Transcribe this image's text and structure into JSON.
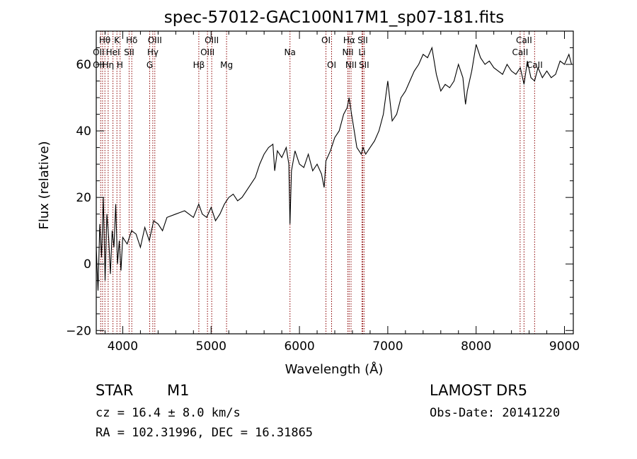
{
  "chart_data": {
    "type": "line",
    "title": "spec-57012-GAC100N17M1_sp07-181.fits",
    "xlabel": "Wavelength (Å)",
    "ylabel": "Flux (relative)",
    "xlim": [
      3700,
      9100
    ],
    "ylim": [
      -21,
      70
    ],
    "x_ticks": [
      4000,
      5000,
      6000,
      7000,
      8000,
      9000
    ],
    "y_ticks": [
      -20,
      0,
      20,
      40,
      60
    ],
    "x_minor_step": 200,
    "y_minor_step": 5,
    "series": [
      {
        "x": [
          3700,
          3720,
          3740,
          3760,
          3780,
          3800,
          3820,
          3840,
          3860,
          3880,
          3900,
          3920,
          3940,
          3960,
          3980,
          4000,
          4050,
          4100,
          4150,
          4200,
          4250,
          4300,
          4350,
          4400,
          4450,
          4500,
          4600,
          4700,
          4800,
          4860,
          4900,
          4950,
          5000,
          5050,
          5100,
          5150,
          5200,
          5250,
          5300,
          5350,
          5400,
          5450,
          5500,
          5550,
          5600,
          5650,
          5700,
          5720,
          5750,
          5800,
          5850,
          5880,
          5893,
          5910,
          5950,
          6000,
          6050,
          6100,
          6150,
          6200,
          6250,
          6280,
          6300,
          6350,
          6400,
          6450,
          6500,
          6540,
          6563,
          6590,
          6620,
          6650,
          6700,
          6720,
          6750,
          6800,
          6850,
          6900,
          6950,
          7000,
          7050,
          7100,
          7150,
          7200,
          7250,
          7300,
          7350,
          7400,
          7450,
          7500,
          7550,
          7600,
          7650,
          7700,
          7750,
          7800,
          7850,
          7880,
          7900,
          7950,
          8000,
          8050,
          8100,
          8150,
          8200,
          8250,
          8300,
          8350,
          8400,
          8450,
          8500,
          8542,
          8580,
          8620,
          8662,
          8700,
          8750,
          8800,
          8850,
          8900,
          8950,
          9000,
          9050,
          9080
        ],
        "y": [
          5,
          -8,
          12,
          2,
          20,
          -5,
          15,
          8,
          -3,
          10,
          5,
          18,
          0,
          7,
          -2,
          8,
          6,
          10,
          9,
          5,
          11,
          7,
          13,
          12,
          10,
          14,
          15,
          16,
          14,
          18,
          15,
          14,
          17,
          13,
          15,
          18,
          20,
          21,
          19,
          20,
          22,
          24,
          26,
          30,
          33,
          35,
          36,
          28,
          34,
          32,
          35,
          30,
          12,
          28,
          34,
          30,
          29,
          33,
          28,
          30,
          27,
          23,
          31,
          34,
          38,
          40,
          45,
          47,
          50,
          45,
          40,
          35,
          33,
          35,
          33,
          35,
          37,
          40,
          45,
          55,
          43,
          45,
          50,
          52,
          55,
          58,
          60,
          63,
          62,
          65,
          57,
          52,
          54,
          53,
          55,
          60,
          56,
          48,
          52,
          58,
          66,
          62,
          60,
          61,
          59,
          58,
          57,
          60,
          58,
          57,
          59,
          54,
          61,
          56,
          55,
          59,
          56,
          58,
          56,
          57,
          61,
          60,
          63,
          60
        ]
      }
    ],
    "line_color": "#000000",
    "marker_color": "#8b0000",
    "spectral_lines": [
      {
        "label": "Hθ",
        "x": 3797,
        "row": 1
      },
      {
        "label": "OII",
        "x": 3727,
        "row": 2
      },
      {
        "label": "OII",
        "x": 3727,
        "row": 3
      },
      {
        "label": "K",
        "x": 3934,
        "row": 1
      },
      {
        "label": "HeI",
        "x": 3889,
        "row": 2
      },
      {
        "label": "Hη",
        "x": 3835,
        "row": 3
      },
      {
        "label": "H",
        "x": 3968,
        "row": 3
      },
      {
        "label": "Hδ",
        "x": 4102,
        "row": 1
      },
      {
        "label": "SII",
        "x": 4072,
        "row": 2
      },
      {
        "label": "OIII",
        "x": 4363,
        "row": 1
      },
      {
        "label": "Hγ",
        "x": 4340,
        "row": 2
      },
      {
        "label": "G",
        "x": 4305,
        "row": 3
      },
      {
        "label": "Hβ",
        "x": 4861,
        "row": 3
      },
      {
        "label": "OIII",
        "x": 5007,
        "row": 1
      },
      {
        "label": "OIII",
        "x": 4959,
        "row": 2
      },
      {
        "label": "Mg",
        "x": 5175,
        "row": 3
      },
      {
        "label": "Na",
        "x": 5893,
        "row": 2
      },
      {
        "label": "OI",
        "x": 6300,
        "row": 1
      },
      {
        "label": "OI",
        "x": 6364,
        "row": 3
      },
      {
        "label": "Hα",
        "x": 6563,
        "row": 1
      },
      {
        "label": "NII",
        "x": 6548,
        "row": 2
      },
      {
        "label": "NII",
        "x": 6584,
        "row": 3
      },
      {
        "label": "SII",
        "x": 6716,
        "row": 1
      },
      {
        "label": "Li",
        "x": 6708,
        "row": 2
      },
      {
        "label": "SII",
        "x": 6731,
        "row": 3
      },
      {
        "label": "CaII",
        "x": 8542,
        "row": 1
      },
      {
        "label": "CaII",
        "x": 8498,
        "row": 2
      },
      {
        "label": "CaII",
        "x": 8662,
        "row": 3
      }
    ],
    "marker_only_x": [
      3750,
      3771,
      3798,
      3835,
      3889,
      3934,
      3970,
      4072,
      4102,
      4305,
      4340,
      4363,
      4861,
      4959,
      5007,
      5175,
      5893,
      6300,
      6364,
      6548,
      6563,
      6584,
      6708,
      6716,
      6731,
      8498,
      8542,
      8662
    ]
  },
  "info": {
    "object_class": "STAR",
    "subclass": "M1",
    "survey": "LAMOST  DR5",
    "redshift_line": "cz = 16.4 ± 8.0 km/s",
    "obs_date_line": "Obs-Date: 20141220",
    "coords_line": "RA = 102.31996, DEC =  16.31865"
  }
}
